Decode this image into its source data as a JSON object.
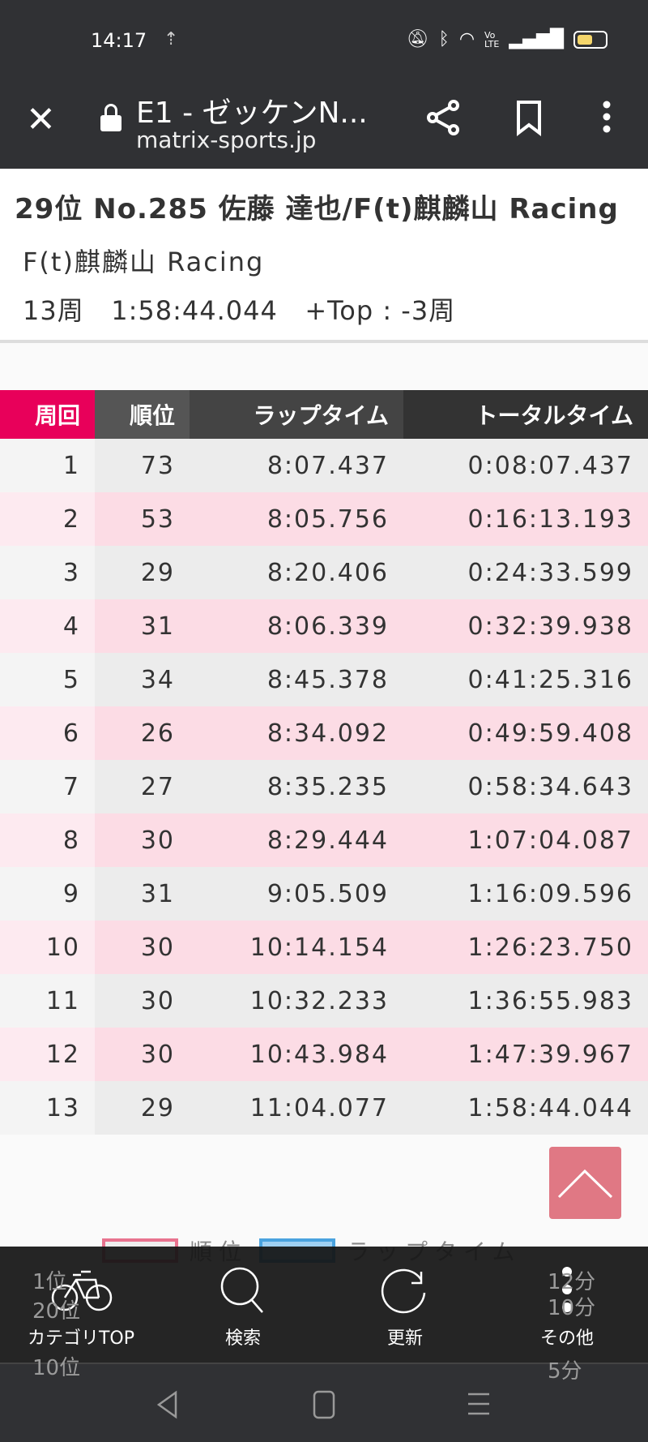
{
  "status_bar": {
    "time": "14:17"
  },
  "browser": {
    "title": "E1 - ゼッケンN...",
    "url": "matrix-sports.jp"
  },
  "racer": {
    "heading": "29位  No.285  佐藤 達也/F(t)麒麟山 Racing",
    "team": "F(t)麒麟山 Racing",
    "summary": "13周   1:58:44.044   +Top : -3周"
  },
  "table": {
    "headers": [
      "周回",
      "順位",
      "ラップタイム",
      "トータルタイム"
    ],
    "rows": [
      [
        "1",
        "73",
        "8:07.437",
        "0:08:07.437"
      ],
      [
        "2",
        "53",
        "8:05.756",
        "0:16:13.193"
      ],
      [
        "3",
        "29",
        "8:20.406",
        "0:24:33.599"
      ],
      [
        "4",
        "31",
        "8:06.339",
        "0:32:39.938"
      ],
      [
        "5",
        "34",
        "8:45.378",
        "0:41:25.316"
      ],
      [
        "6",
        "26",
        "8:34.092",
        "0:49:59.408"
      ],
      [
        "7",
        "27",
        "8:35.235",
        "0:58:34.643"
      ],
      [
        "8",
        "30",
        "8:29.444",
        "1:07:04.087"
      ],
      [
        "9",
        "31",
        "9:05.509",
        "1:16:09.596"
      ],
      [
        "10",
        "30",
        "10:14.154",
        "1:26:23.750"
      ],
      [
        "11",
        "30",
        "10:32.233",
        "1:36:55.983"
      ],
      [
        "12",
        "30",
        "10:43.984",
        "1:47:39.967"
      ],
      [
        "13",
        "29",
        "11:04.077",
        "1:58:44.044"
      ]
    ]
  },
  "chart": {
    "legend": [
      "順位",
      "ラップタイム"
    ],
    "left_ticks": [
      "1位",
      "20位",
      "10位"
    ],
    "right_ticks": [
      "12分",
      "10分",
      "5分"
    ],
    "colors": {
      "rank": "#e8738f",
      "lap": "#4aa3df"
    }
  },
  "bottom_nav": {
    "items": [
      "カテゴリTOP",
      "検索",
      "更新",
      "その他"
    ]
  },
  "colors": {
    "accent": "#e8005a",
    "to_top": "#e07884"
  }
}
